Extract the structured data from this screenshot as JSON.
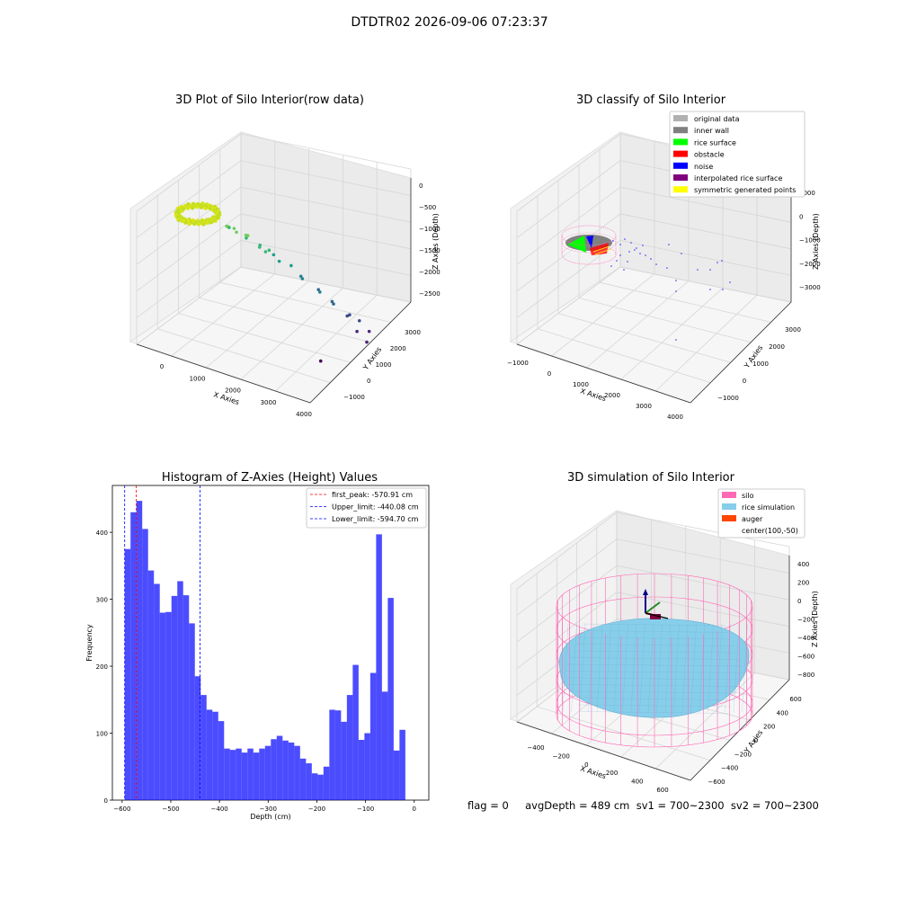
{
  "suptitle": "DTDTR02 2026-09-06 07:23:37",
  "footer": "flag = 0     avgDepth = 489 cm  sv1 = 700~2300  sv2 = 700~2300",
  "colors": {
    "rice_sim": "#87ceeb",
    "silo": "#ff69b4",
    "auger": "#ff4500",
    "hist": "#0000ff",
    "first_peak": "#ff0000",
    "limits": "#0000ff"
  },
  "chart_data": [
    {
      "type": "scatter",
      "title": "3D Plot of Silo Interior(row data)",
      "xlabel": "X Axies",
      "ylabel": "Y Axies",
      "zlabel": "Z Axies (Depth)",
      "x_ticks": [
        "0",
        "1000",
        "2000",
        "3000",
        "4000"
      ],
      "y_ticks": [
        "−1000",
        "0",
        "1000",
        "2000",
        "3000"
      ],
      "z_ticks": [
        "0",
        "−500",
        "−1000",
        "−1500",
        "−2000",
        "−2500"
      ],
      "xlim": [
        -500,
        4000
      ],
      "ylim": [
        -1500,
        3500
      ],
      "zlim": [
        -2800,
        0
      ],
      "colormap": "viridis (by depth)",
      "cluster": {
        "description": "dense ring of points near silo",
        "x": [
          -300,
          400
        ],
        "y": [
          -200,
          300
        ],
        "z": [
          -600,
          -300
        ]
      },
      "points": [
        {
          "x": 700,
          "y": 600,
          "z": -700
        },
        {
          "x": 800,
          "y": 500,
          "z": -650
        },
        {
          "x": 900,
          "y": 700,
          "z": -800
        },
        {
          "x": 1000,
          "y": 400,
          "z": -600
        },
        {
          "x": 1100,
          "y": 800,
          "z": -900
        },
        {
          "x": 600,
          "y": 900,
          "z": -850
        },
        {
          "x": 1200,
          "y": 600,
          "z": -750
        },
        {
          "x": 1300,
          "y": 500,
          "z": -700
        },
        {
          "x": 1400,
          "y": 900,
          "z": -1000
        },
        {
          "x": 1500,
          "y": 700,
          "z": -950
        },
        {
          "x": 1600,
          "y": 800,
          "z": -1050
        },
        {
          "x": 1700,
          "y": 1000,
          "z": -1150
        },
        {
          "x": 1800,
          "y": 600,
          "z": -900
        },
        {
          "x": 1900,
          "y": 900,
          "z": -1200
        },
        {
          "x": 2100,
          "y": 1100,
          "z": -1300
        },
        {
          "x": 2300,
          "y": 1200,
          "z": -1500
        },
        {
          "x": 2500,
          "y": 900,
          "z": -1400
        },
        {
          "x": 2700,
          "y": 1300,
          "z": -1700
        },
        {
          "x": 2900,
          "y": 1000,
          "z": -1600
        },
        {
          "x": 3000,
          "y": 1400,
          "z": -1900
        },
        {
          "x": 3200,
          "y": 1100,
          "z": -1800
        },
        {
          "x": 3400,
          "y": 1500,
          "z": -2100
        },
        {
          "x": 3500,
          "y": 1200,
          "z": -2000
        },
        {
          "x": 3600,
          "y": 1600,
          "z": -2200
        },
        {
          "x": 3700,
          "y": 1300,
          "z": -2300
        },
        {
          "x": 3800,
          "y": 1700,
          "z": -2400
        },
        {
          "x": 3900,
          "y": 1400,
          "z": -2500
        },
        {
          "x": 3300,
          "y": 300,
          "z": -2700
        }
      ]
    },
    {
      "type": "scatter",
      "title": "3D classify of Silo Interior",
      "xlabel": "X Axies",
      "ylabel": "Y Axies",
      "zlabel": "Z Axies (Depth)",
      "x_ticks": [
        "−1000",
        "0",
        "1000",
        "2000",
        "3000",
        "4000"
      ],
      "y_ticks": [
        "−1000",
        "0",
        "1000",
        "2000",
        "3000"
      ],
      "z_ticks": [
        "1000",
        "0",
        "−1000",
        "−2000",
        "−3000"
      ],
      "xlim": [
        -1000,
        4000
      ],
      "ylim": [
        -1500,
        3500
      ],
      "zlim": [
        -3500,
        1000
      ],
      "legend": {
        "placement": "top-right",
        "entries": [
          {
            "label": "original data",
            "color": "#b0b0b0"
          },
          {
            "label": "inner wall",
            "color": "#808080"
          },
          {
            "label": "rice surface",
            "color": "#00ff00"
          },
          {
            "label": "obstacle",
            "color": "#ff0000"
          },
          {
            "label": "noise",
            "color": "#0000ff"
          },
          {
            "label": "interpolated rice surface",
            "color": "#800080"
          },
          {
            "label": "symmetric generated points",
            "color": "#ffff00"
          }
        ]
      }
    },
    {
      "type": "bar",
      "title": "Histogram of Z-Axies (Height) Values",
      "xlabel": "Depth (cm)",
      "ylabel": "Frequency",
      "xlim": [
        -620,
        30
      ],
      "ylim": [
        0,
        470
      ],
      "x_ticks": [
        "−600",
        "−500",
        "−400",
        "−300",
        "−200",
        "−100",
        "0"
      ],
      "y_ticks": [
        "0",
        "100",
        "200",
        "300",
        "400"
      ],
      "bin_start": -594.7,
      "bin_width": 12.01,
      "values": [
        375,
        430,
        447,
        405,
        343,
        323,
        280,
        281,
        305,
        327,
        306,
        264,
        185,
        157,
        135,
        132,
        118,
        77,
        75,
        77,
        71,
        77,
        71,
        77,
        81,
        91,
        96,
        89,
        86,
        81,
        62,
        55,
        40,
        38,
        50,
        135,
        134,
        117,
        157,
        202,
        90,
        100,
        190,
        397,
        162,
        302,
        74,
        105
      ],
      "lines": [
        {
          "label": "first_peak: -570.91 cm",
          "x": -570.91,
          "color": "#ff0000"
        },
        {
          "label": "Upper_limit: -440.08 cm",
          "x": -440.08,
          "color": "#0000ff"
        },
        {
          "label": "Lower_limit: -594.70 cm",
          "x": -594.7,
          "color": "#0000ff"
        }
      ],
      "legend_placement": "top-right"
    },
    {
      "type": "surface",
      "title": "3D simulation of Silo Interior",
      "xlabel": "X Axies",
      "ylabel": "Y Axies",
      "zlabel": "Z Axies (Depth)",
      "x_ticks": [
        "−400",
        "−200",
        "0",
        "200",
        "400",
        "600"
      ],
      "y_ticks": [
        "−600",
        "−400",
        "−200",
        "0",
        "200",
        "400",
        "600"
      ],
      "z_ticks": [
        "400",
        "200",
        "0",
        "−200",
        "−400",
        "−600",
        "−800"
      ],
      "xlim": [
        -550,
        750
      ],
      "ylim": [
        -650,
        650
      ],
      "zlim": [
        -900,
        450
      ],
      "legend": {
        "placement": "top-right",
        "entries": [
          {
            "label": "silo",
            "color": "#ff69b4"
          },
          {
            "label": "rice simulation",
            "color": "#87ceeb"
          },
          {
            "label": "auger",
            "color": "#ff4500"
          },
          {
            "label": "center(100,-50)",
            "color": ""
          }
        ]
      }
    }
  ]
}
